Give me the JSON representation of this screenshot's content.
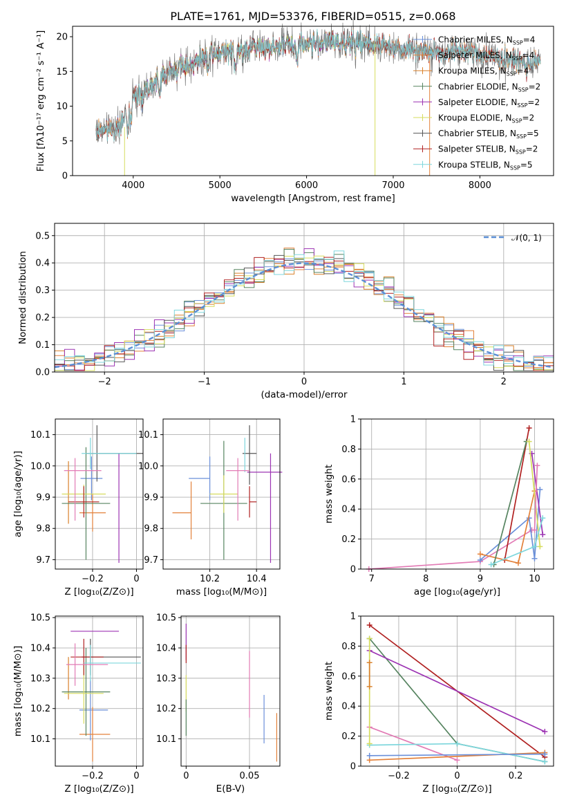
{
  "colors": {
    "CM": "#6a8fd9",
    "SM": "#e3813a",
    "KM": "#d9802a",
    "CE": "#55835f",
    "SE": "#9c33b3",
    "KE": "#d6dc5c",
    "CS": "#555555",
    "SS": "#b02020",
    "KS": "#7dd6dc"
  },
  "chart_data": [
    {
      "type": "line",
      "title": "PLATE=1761, MJD=53376, FIBERID=0515, z=0.068",
      "xlabel": "wavelength [Angstrom, rest frame]",
      "ylabel": "Flux [fλ10⁻¹⁷ erg cm⁻² s⁻¹ A⁻¹]",
      "xlim": [
        3300,
        8850
      ],
      "ylim": [
        0,
        21.5
      ],
      "xticks": [
        4000,
        5000,
        6000,
        7000,
        8000
      ],
      "yticks": [
        0,
        5,
        10,
        15,
        20
      ],
      "grid": false,
      "legend_position": "top-right",
      "series": [
        {
          "name": "Chabrier MILES, N_SSP=4",
          "key": "CM"
        },
        {
          "name": "Salpeter MILES, N_SSP=4",
          "key": "SM"
        },
        {
          "name": "Kroupa MILES, N_SSP=4",
          "key": "KM"
        },
        {
          "name": "Chabrier ELODIE, N_SSP=2",
          "key": "CE"
        },
        {
          "name": "Salpeter ELODIE, N_SSP=2",
          "key": "SE"
        },
        {
          "name": "Kroupa ELODIE, N_SSP=2",
          "key": "KE"
        },
        {
          "name": "Chabrier STELIB, N_SSP=5",
          "key": "CS"
        },
        {
          "name": "Salpeter STELIB, N_SSP=2",
          "key": "SS"
        },
        {
          "name": "Kroupa STELIB, N_SSP=5",
          "key": "KS"
        }
      ],
      "continuum": {
        "x": [
          3570,
          3640,
          3700,
          3760,
          3800,
          3850,
          3900,
          3960,
          4050,
          4150,
          4300,
          4450,
          4600,
          4800,
          5000,
          5200,
          5400,
          5600,
          5800,
          6000,
          6200,
          6400,
          6600,
          6800,
          7000,
          7200,
          7400,
          7600,
          7800,
          8000,
          8200,
          8400,
          8600,
          8700
        ],
        "y": [
          6.0,
          6.8,
          6.5,
          7.0,
          6.6,
          7.2,
          8.5,
          10.5,
          11.8,
          12.5,
          14.0,
          15.0,
          15.8,
          16.8,
          17.6,
          18.1,
          18.5,
          18.6,
          18.8,
          19.0,
          19.2,
          19.2,
          19.1,
          19.0,
          18.6,
          18.2,
          17.8,
          17.9,
          17.9,
          17.6,
          17.0,
          16.6,
          16.3,
          16.5
        ]
      }
    },
    {
      "type": "bar",
      "xlabel": "(data-model)/error",
      "ylabel": "Normed distribution",
      "xlim": [
        -2.5,
        2.5
      ],
      "ylim": [
        0,
        0.545
      ],
      "xticks": [
        -2,
        -1,
        0,
        1,
        2
      ],
      "yticks": [
        0.0,
        0.1,
        0.2,
        0.3,
        0.4,
        0.5
      ],
      "grid": true,
      "legend_position": "top-right",
      "legend_label": "𝒩(0, 1)",
      "bin_width": 0.1
    },
    {
      "type": "scatter",
      "xlabel": "Z [log₁₀(Z/Z⊙)]",
      "ylabel": "age  [log₁₀(age/yr)]",
      "xlim": [
        -0.37,
        0.03
      ],
      "ylim": [
        9.67,
        10.15
      ],
      "xticks": [
        -0.2,
        0.0
      ],
      "yticks": [
        9.7,
        9.8,
        9.9,
        10.0,
        10.1
      ],
      "grid": true,
      "points": [
        {
          "key": "CM",
          "x": -0.205,
          "y": 9.96,
          "xerr": [
            0.05,
            0.05
          ],
          "yerr": [
            0.07,
            0.07
          ]
        },
        {
          "key": "SM",
          "x": -0.2,
          "y": 9.85,
          "xerr": [
            0.06,
            0.06
          ],
          "yerr": [
            0.06,
            0.06
          ]
        },
        {
          "key": "KM",
          "x": -0.31,
          "y": 9.915,
          "xerr": [
            0.0,
            0.0
          ],
          "yerr": [
            0.1,
            0.1
          ]
        },
        {
          "key": "CE",
          "x": -0.23,
          "y": 9.88,
          "xerr": [
            0.11,
            0.11
          ],
          "yerr": [
            0.18,
            0.18
          ]
        },
        {
          "key": "SE",
          "x": -0.08,
          "y": 9.98,
          "xerr": [
            0.0,
            0.0
          ],
          "yerr": [
            0.29,
            0.06
          ]
        },
        {
          "key": "KE",
          "x": -0.24,
          "y": 9.91,
          "xerr": [
            0.1,
            0.1
          ],
          "yerr": [
            0.03,
            0.03
          ]
        },
        {
          "key": "CS",
          "x": -0.18,
          "y": 10.04,
          "xerr": [
            0.05,
            0.21
          ],
          "yerr": [
            0.09,
            0.09
          ]
        },
        {
          "key": "SS",
          "x": -0.24,
          "y": 9.885,
          "xerr": [
            0.07,
            0.07
          ],
          "yerr": [
            0.05,
            0.05
          ]
        },
        {
          "key": "KS",
          "x": -0.21,
          "y": 10.04,
          "xerr": [
            0.04,
            0.21
          ],
          "yerr": [
            0.05,
            0.05
          ]
        },
        {
          "key": "PK",
          "x": -0.28,
          "y": 9.985,
          "xerr": [
            0.05,
            0.12
          ],
          "yerr": [
            0.16,
            0.04
          ]
        }
      ]
    },
    {
      "type": "scatter",
      "xlabel": "mass [log₁₀(M/M⊙)]",
      "ylabel": "",
      "xlim": [
        10.0,
        10.5
      ],
      "ylim": [
        9.67,
        10.15
      ],
      "xticks": [
        10.2,
        10.4
      ],
      "yticks": [
        9.7,
        9.8,
        9.9,
        10.0,
        10.1
      ],
      "grid": true,
      "points": [
        {
          "key": "CM",
          "x": 10.2,
          "y": 9.96,
          "xerr": [
            0.09,
            0.0
          ],
          "yerr": [
            0.07,
            0.07
          ]
        },
        {
          "key": "SM",
          "x": 10.12,
          "y": 9.85,
          "xerr": [
            0.08,
            0.0
          ],
          "yerr": [
            0.085,
            0.1
          ]
        },
        {
          "key": "CE",
          "x": 10.26,
          "y": 9.88,
          "xerr": [
            0.1,
            0.1
          ],
          "yerr": [
            0.18,
            0.2
          ]
        },
        {
          "key": "SE",
          "x": 10.46,
          "y": 9.98,
          "xerr": [
            0.1,
            0.05
          ],
          "yerr": [
            0.29,
            0.06
          ]
        },
        {
          "key": "KE",
          "x": 10.26,
          "y": 9.91,
          "xerr": [
            0.06,
            0.06
          ],
          "yerr": [
            0.06,
            0.06
          ]
        },
        {
          "key": "CS",
          "x": 10.37,
          "y": 10.04,
          "xerr": [
            0.03,
            0.03
          ],
          "yerr": [
            0.1,
            0.09
          ]
        },
        {
          "key": "SS",
          "x": 10.37,
          "y": 9.885,
          "xerr": [
            0.0,
            0.03
          ],
          "yerr": [
            0.05,
            0.05
          ]
        },
        {
          "key": "KS",
          "x": 10.35,
          "y": 10.04,
          "xerr": [
            0.0,
            0.0
          ],
          "yerr": [
            0.06,
            0.05
          ]
        },
        {
          "key": "PK",
          "x": 10.32,
          "y": 9.985,
          "xerr": [
            0.05,
            0.05
          ],
          "yerr": [
            0.16,
            0.04
          ]
        }
      ]
    },
    {
      "type": "line",
      "xlabel": "age  [log₁₀(age/yr)]",
      "ylabel": "mass weight",
      "xlim": [
        6.8,
        10.35
      ],
      "ylim": [
        0,
        1
      ],
      "xticks": [
        7,
        8,
        9,
        10
      ],
      "yticks": [
        0.0,
        0.2,
        0.4,
        0.6,
        0.8,
        1.0
      ],
      "grid": true,
      "series": [
        {
          "key": "PK",
          "x": [
            6.95,
            9.0,
            9.95
          ],
          "y": [
            0.0,
            0.05,
            0.26
          ]
        },
        {
          "key": "CM",
          "x": [
            9.0,
            9.9,
            10.0,
            10.1
          ],
          "y": [
            0.06,
            0.34,
            0.07,
            0.53
          ]
        },
        {
          "key": "SE",
          "x": [
            9.95,
            10.15
          ],
          "y": [
            0.77,
            0.23
          ]
        },
        {
          "key": "SS",
          "x": [
            9.45,
            9.9
          ],
          "y": [
            0.06,
            0.94
          ]
        },
        {
          "key": "SM",
          "x": [
            9.0,
            9.7,
            10.0
          ],
          "y": [
            0.1,
            0.04,
            0.52
          ]
        },
        {
          "key": "CE",
          "x": [
            9.25,
            9.85
          ],
          "y": [
            0.03,
            0.85
          ]
        },
        {
          "key": "KE",
          "x": [
            9.9,
            10.1
          ],
          "y": [
            0.85,
            0.15
          ]
        },
        {
          "key": "KS",
          "x": [
            9.2,
            10.0,
            10.15
          ],
          "y": [
            0.03,
            0.15,
            0.34
          ]
        },
        {
          "key": "PK2",
          "x": [
            10.0,
            10.05
          ],
          "y": [
            0.26,
            0.69
          ]
        }
      ]
    },
    {
      "type": "scatter",
      "xlabel": "Z [log₁₀(Z/Z⊙)]",
      "ylabel": "mass [log₁₀(M/M⊙)]",
      "xlim": [
        -0.37,
        0.03
      ],
      "ylim": [
        10.01,
        10.505
      ],
      "xticks": [
        -0.2,
        0.0
      ],
      "yticks": [
        10.1,
        10.2,
        10.3,
        10.4,
        10.5
      ],
      "grid": true,
      "points": [
        {
          "key": "CM",
          "x": -0.21,
          "y": 10.195,
          "xerr": [
            0.05,
            0.08
          ],
          "yerr": [
            0.1,
            0.1
          ]
        },
        {
          "key": "SM",
          "x": -0.2,
          "y": 10.115,
          "xerr": [
            0.06,
            0.08
          ],
          "yerr": [
            0.09,
            0.09
          ]
        },
        {
          "key": "KM",
          "x": -0.31,
          "y": 10.3,
          "xerr": [
            0.0,
            0.0
          ],
          "yerr": [
            0.07,
            0.07
          ]
        },
        {
          "key": "CE",
          "x": -0.23,
          "y": 10.255,
          "xerr": [
            0.11,
            0.11
          ],
          "yerr": [
            0.145,
            0.145
          ]
        },
        {
          "key": "SE",
          "x": -0.08,
          "y": 10.455,
          "xerr": [
            0.22,
            0.0
          ],
          "yerr": [
            0.0,
            0.0
          ]
        },
        {
          "key": "KE",
          "x": -0.24,
          "y": 10.25,
          "xerr": [
            0.09,
            0.09
          ],
          "yerr": [
            0.1,
            0.1
          ]
        },
        {
          "key": "CS",
          "x": -0.21,
          "y": 10.37,
          "xerr": [
            0.04,
            0.23
          ],
          "yerr": [
            0.06,
            0.06
          ]
        },
        {
          "key": "SS",
          "x": -0.24,
          "y": 10.37,
          "xerr": [
            0.06,
            0.09
          ],
          "yerr": [
            0.06,
            0.06
          ]
        },
        {
          "key": "KS",
          "x": -0.21,
          "y": 10.35,
          "xerr": [
            0.03,
            0.23
          ],
          "yerr": [
            0.06,
            0.06
          ]
        },
        {
          "key": "PK",
          "x": -0.28,
          "y": 10.345,
          "xerr": [
            0.04,
            0.15
          ],
          "yerr": [
            0.07,
            0.07
          ]
        }
      ]
    },
    {
      "type": "scatter",
      "xlabel": "E(B-V)",
      "ylabel": "",
      "xlim": [
        -0.004,
        0.074
      ],
      "ylim": [
        10.01,
        10.505
      ],
      "xticks": [
        0.0,
        0.05
      ],
      "yticks": [
        10.1,
        10.2,
        10.3,
        10.4,
        10.5
      ],
      "grid": true,
      "points": [
        {
          "key": "SE",
          "x": 0.0,
          "y": 10.42,
          "xerr": [
            0.0,
            0.0
          ],
          "yerr": [
            0.06,
            0.06
          ]
        },
        {
          "key": "SS",
          "x": 0.0,
          "y": 10.38,
          "xerr": [
            0.0,
            0.0
          ],
          "yerr": [
            0.03,
            0.03
          ]
        },
        {
          "key": "KE",
          "x": 0.0,
          "y": 10.25,
          "xerr": [
            0.0,
            0.0
          ],
          "yerr": [
            0.06,
            0.06
          ]
        },
        {
          "key": "CE",
          "x": 0.0,
          "y": 10.17,
          "xerr": [
            0.0,
            0.0
          ],
          "yerr": [
            0.06,
            0.06
          ]
        },
        {
          "key": "PK",
          "x": 0.05,
          "y": 10.28,
          "xerr": [
            0.0,
            0.0
          ],
          "yerr": [
            0.11,
            0.11
          ]
        },
        {
          "key": "CM",
          "x": 0.0615,
          "y": 10.165,
          "xerr": [
            0.0,
            0.0
          ],
          "yerr": [
            0.08,
            0.08
          ]
        },
        {
          "key": "SM",
          "x": 0.0715,
          "y": 10.105,
          "xerr": [
            0.0,
            0.0
          ],
          "yerr": [
            0.08,
            0.08
          ]
        }
      ]
    },
    {
      "type": "line",
      "xlabel": "Z [log₁₀(Z/Z⊙)]",
      "ylabel": "mass weight",
      "xlim": [
        -0.33,
        0.33
      ],
      "ylim": [
        0,
        1
      ],
      "xticks": [
        -0.2,
        0.0,
        0.2
      ],
      "yticks": [
        0.0,
        0.2,
        0.4,
        0.6,
        0.8,
        1.0
      ],
      "grid": true,
      "series": [
        {
          "key": "SS",
          "x": [
            -0.3,
            0.3
          ],
          "y": [
            0.94,
            0.06
          ]
        },
        {
          "key": "CE",
          "x": [
            -0.3,
            0.0,
            0.3
          ],
          "y": [
            0.85,
            0.15,
            0.03
          ]
        },
        {
          "key": "SE",
          "x": [
            -0.3,
            0.3
          ],
          "y": [
            0.77,
            0.23
          ]
        },
        {
          "key": "PK",
          "x": [
            -0.3,
            0.0
          ],
          "y": [
            0.26,
            0.04
          ]
        },
        {
          "key": "SM",
          "x": [
            -0.3,
            0.3
          ],
          "y": [
            0.04,
            0.09
          ]
        },
        {
          "key": "KS",
          "x": [
            -0.3,
            0.0,
            0.3
          ],
          "y": [
            0.14,
            0.15,
            0.03
          ]
        },
        {
          "key": "CM",
          "x": [
            -0.3,
            0.3
          ],
          "y": [
            0.07,
            0.08
          ]
        },
        {
          "key": "KE",
          "x": [
            -0.3,
            -0.3
          ],
          "y": [
            0.15,
            0.85
          ]
        },
        {
          "key": "KM",
          "x": [
            -0.3,
            -0.3
          ],
          "y": [
            0.53,
            0.69
          ]
        }
      ]
    }
  ]
}
